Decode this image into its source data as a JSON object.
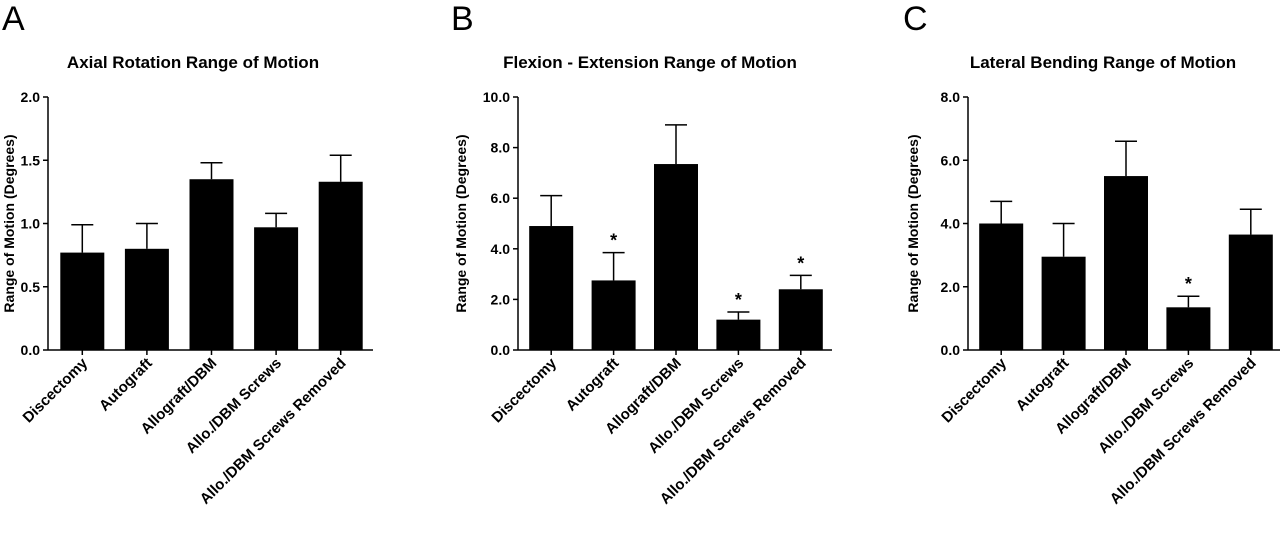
{
  "chart_data": [
    {
      "panel": "A",
      "type": "bar",
      "title": "Axial Rotation Range of Motion",
      "ylabel": "Range of Motion (Degrees)",
      "ylim": [
        0,
        2.0
      ],
      "yticks": [
        "0.0",
        "0.5",
        "1.0",
        "1.5",
        "2.0"
      ],
      "categories": [
        "Discectomy",
        "Autograft",
        "Allograft/DBM",
        "Allo./DBM Screws",
        "Allo./DBM Screws Removed"
      ],
      "values": [
        0.77,
        0.8,
        1.35,
        0.97,
        1.33
      ],
      "errors": [
        0.22,
        0.2,
        0.13,
        0.11,
        0.21
      ],
      "significance": [
        "",
        "",
        "",
        "",
        ""
      ]
    },
    {
      "panel": "B",
      "type": "bar",
      "title": "Flexion - Extension Range of Motion",
      "ylabel": "Range of Motion (Degrees)",
      "ylim": [
        0,
        10.0
      ],
      "yticks": [
        "0.0",
        "2.0",
        "4.0",
        "6.0",
        "8.0",
        "10.0"
      ],
      "categories": [
        "Discectomy",
        "Autograft",
        "Allograft/DBM",
        "Allo./DBM Screws",
        "Allo./DBM Screws Removed"
      ],
      "values": [
        4.9,
        2.75,
        7.35,
        1.2,
        2.4
      ],
      "errors": [
        1.2,
        1.1,
        1.55,
        0.3,
        0.55
      ],
      "significance": [
        "",
        "*",
        "",
        "*",
        "*"
      ]
    },
    {
      "panel": "C",
      "type": "bar",
      "title": "Lateral Bending Range of Motion",
      "ylabel": "Range of Motion (Degrees)",
      "ylim": [
        0,
        8.0
      ],
      "yticks": [
        "0.0",
        "2.0",
        "4.0",
        "6.0",
        "8.0"
      ],
      "categories": [
        "Discectomy",
        "Autograft",
        "Allograft/DBM",
        "Allo./DBM Screws",
        "Allo./DBM Screws Removed"
      ],
      "values": [
        4.0,
        2.95,
        5.5,
        1.35,
        3.65
      ],
      "errors": [
        0.7,
        1.05,
        1.1,
        0.35,
        0.8
      ],
      "significance": [
        "",
        "",
        "",
        "*",
        ""
      ]
    }
  ],
  "colors": {
    "bar": "#000000",
    "axis": "#000000",
    "background": "#ffffff"
  }
}
